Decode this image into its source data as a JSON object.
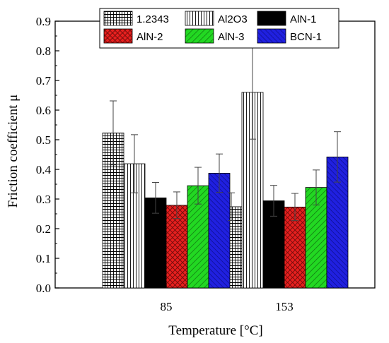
{
  "chart_data": {
    "type": "bar",
    "title": "",
    "xlabel": "Temperature [°C]",
    "ylabel": "Friction coefficient μ",
    "categories": [
      "85",
      "153"
    ],
    "ylim": [
      0,
      0.9
    ],
    "yticks": [
      "0.0",
      "0.1",
      "0.2",
      "0.3",
      "0.4",
      "0.5",
      "0.6",
      "0.7",
      "0.8",
      "0.9"
    ],
    "legend_position": "top",
    "grid": false,
    "series": [
      {
        "name": "1.2343",
        "values": [
          0.523,
          0.274
        ],
        "errors": [
          0.108,
          0.047
        ],
        "color": "#ffffff",
        "pattern": "crosshatch"
      },
      {
        "name": "Al2O3",
        "values": [
          0.419,
          0.66
        ],
        "errors": [
          0.098,
          0.158
        ],
        "color": "#ffffff",
        "pattern": "vertical-lines"
      },
      {
        "name": "AlN-1",
        "values": [
          0.304,
          0.294
        ],
        "errors": [
          0.052,
          0.052
        ],
        "color": "#000000",
        "pattern": "solid"
      },
      {
        "name": "AlN-2",
        "values": [
          0.279,
          0.273
        ],
        "errors": [
          0.045,
          0.046
        ],
        "color": "#e8201f",
        "pattern": "crosshatch"
      },
      {
        "name": "AlN-3",
        "values": [
          0.345,
          0.339
        ],
        "errors": [
          0.062,
          0.059
        ],
        "color": "#22d822",
        "pattern": "diagonal"
      },
      {
        "name": "BCN-1",
        "values": [
          0.387,
          0.442
        ],
        "errors": [
          0.065,
          0.085
        ],
        "color": "#2020e0",
        "pattern": "diagonal"
      }
    ]
  }
}
